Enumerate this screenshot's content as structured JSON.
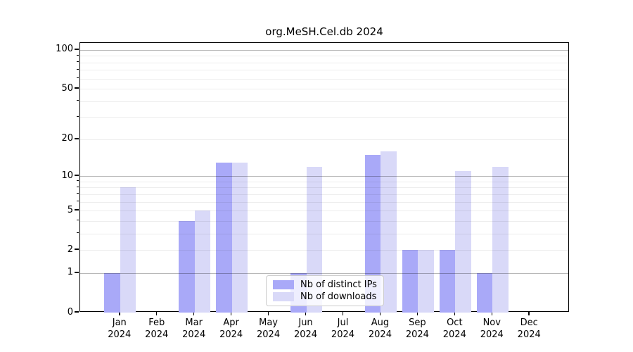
{
  "title": "org.MeSH.Cel.db 2024",
  "chart_data": {
    "type": "bar",
    "title": "org.MeSH.Cel.db 2024",
    "categories": [
      "Jan 2024",
      "Feb 2024",
      "Mar 2024",
      "Apr 2024",
      "May 2024",
      "Jun 2024",
      "Jul 2024",
      "Aug 2024",
      "Sep 2024",
      "Oct 2024",
      "Nov 2024",
      "Dec 2024"
    ],
    "series": [
      {
        "name": "Nb of distinct IPs",
        "color": "#a9a9f8",
        "values": [
          1,
          0,
          4,
          13,
          0,
          1,
          0,
          15,
          2,
          2,
          1,
          0
        ]
      },
      {
        "name": "Nb of downloads",
        "color": "#d9d9f8",
        "values": [
          8,
          0,
          5,
          13,
          0,
          12,
          0,
          16,
          2,
          11,
          12,
          0
        ]
      }
    ],
    "y_scale": "log10(value+1)",
    "y_axis_ticks": [
      100,
      50,
      20,
      10,
      5,
      2,
      1,
      0
    ],
    "y_major_gridlines": [
      1,
      10,
      100
    ],
    "y_minor_gridlines": [
      2,
      3,
      4,
      5,
      6,
      7,
      8,
      9,
      20,
      30,
      40,
      50,
      60,
      70,
      80,
      90
    ],
    "y_top_value": 113,
    "xlabel": "",
    "ylabel": "",
    "grid": true,
    "legend_position": "bottom-center"
  },
  "legend": {
    "items": [
      {
        "label": "Nb of distinct IPs",
        "color": "#a9a9f8"
      },
      {
        "label": "Nb of downloads",
        "color": "#d9d9f8"
      }
    ]
  }
}
